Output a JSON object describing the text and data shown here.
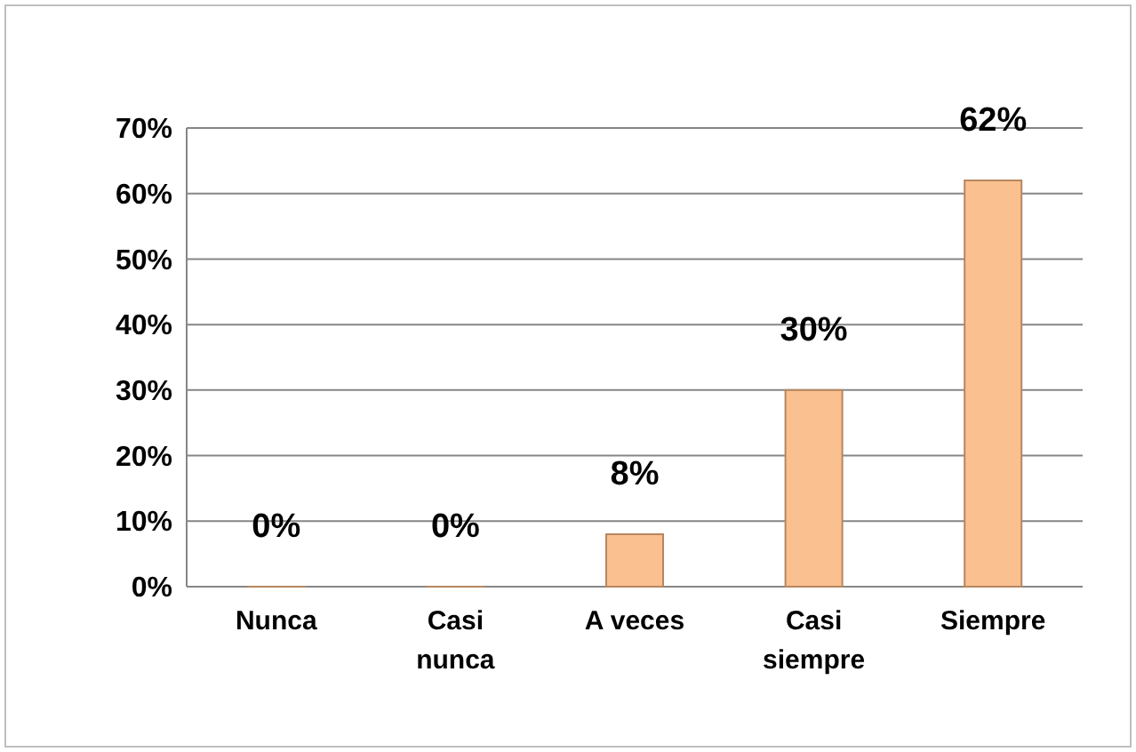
{
  "chart_data": {
    "type": "bar",
    "categories": [
      "Nunca",
      "Casi nunca",
      "A veces",
      "Casi siempre",
      "Siempre"
    ],
    "values": [
      0,
      0,
      8,
      30,
      62
    ],
    "color": "#fac090",
    "value_labels": [
      "0%",
      "0%",
      "8%",
      "30%",
      "62%"
    ],
    "ylim": [
      0,
      70
    ],
    "yticks": [
      {
        "value": 0,
        "label": "0%"
      },
      {
        "value": 10,
        "label": "10%"
      },
      {
        "value": 20,
        "label": "20%"
      },
      {
        "value": 30,
        "label": "30%"
      },
      {
        "value": 40,
        "label": "40%"
      },
      {
        "value": 50,
        "label": "50%"
      },
      {
        "value": 60,
        "label": "60%"
      },
      {
        "value": 70,
        "label": "70%"
      }
    ],
    "grid": "y"
  }
}
